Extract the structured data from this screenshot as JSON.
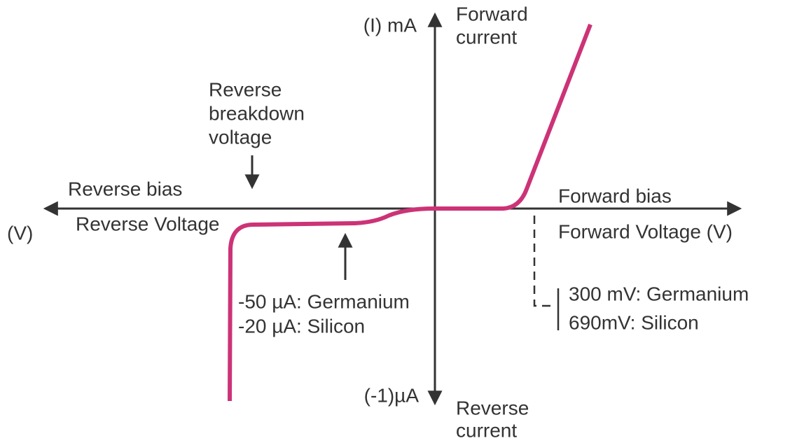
{
  "y_axis": {
    "top_label": "(I) mA",
    "bottom_label": "(-1)µA",
    "top_caption": [
      "Forward",
      "current"
    ],
    "bottom_caption": [
      "Reverse",
      "current"
    ]
  },
  "x_axis": {
    "left_label": "(V)",
    "left_above": "Reverse bias",
    "left_below": "Reverse Voltage",
    "right_above": "Forward bias",
    "right_below": "Forward Voltage (V)"
  },
  "breakdown_label": [
    "Reverse",
    "breakdown",
    "voltage"
  ],
  "reverse_current_note": [
    "-50 µA: Germanium",
    "-20 µA: Silicon"
  ],
  "threshold_note": [
    "300 mV: Germanium",
    "690mV: Silicon"
  ]
}
